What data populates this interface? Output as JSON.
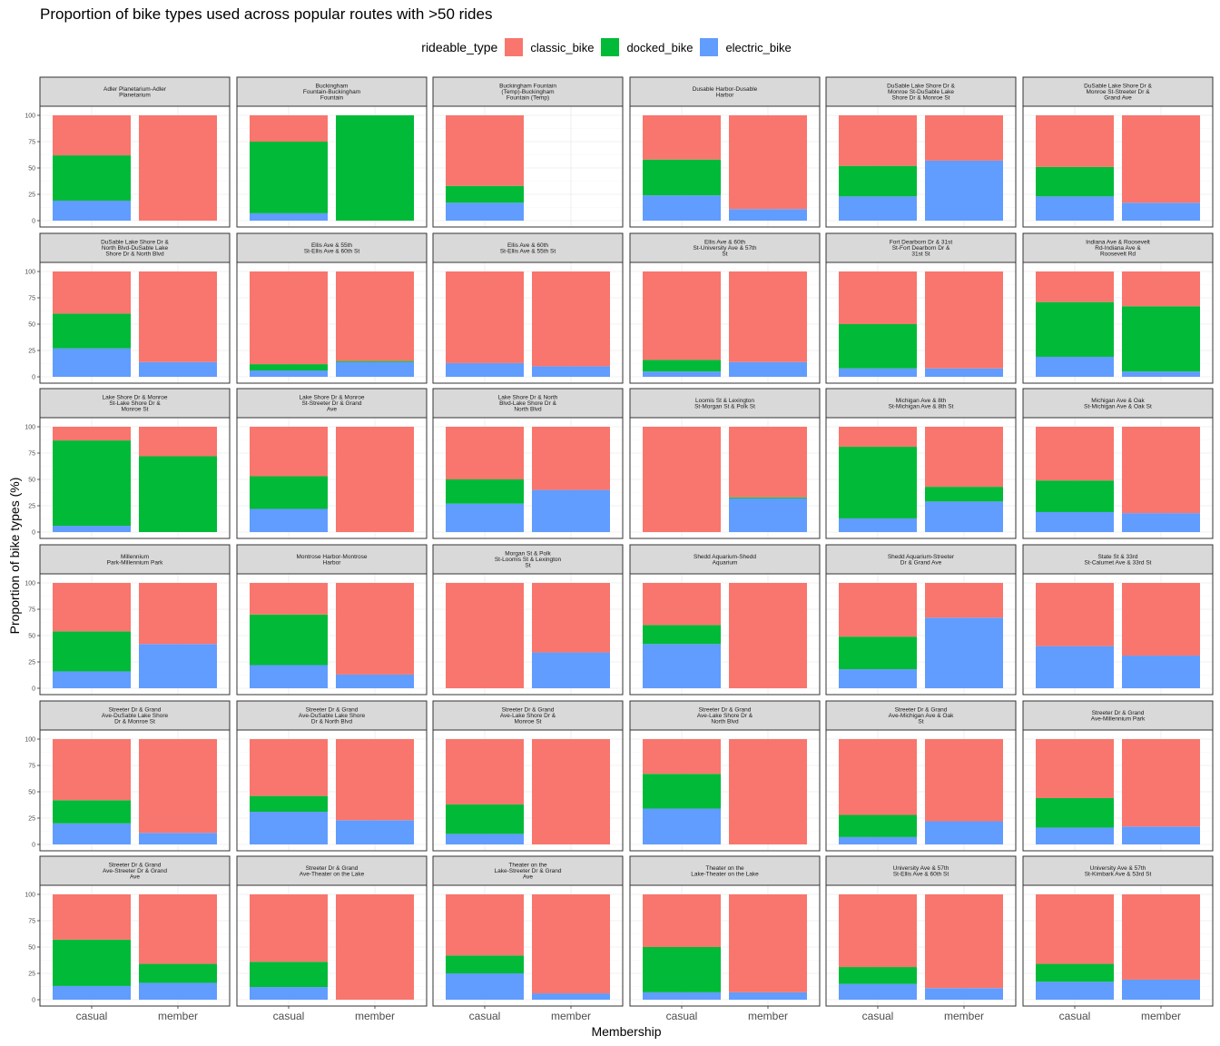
{
  "chart_data": {
    "type": "bar",
    "stacked": true,
    "title": "Proportion of bike types used across popular routes with >50 rides",
    "xlabel": "Membership",
    "ylabel": "Proportion of bike types (%)",
    "ylim": [
      0,
      100
    ],
    "yticks": [
      "0",
      "25",
      "50",
      "75",
      "100"
    ],
    "categories": [
      "casual",
      "member"
    ],
    "legend": {
      "title": "rideable_type",
      "position": "top",
      "items": [
        {
          "name": "classic_bike",
          "color": "#F8766D"
        },
        {
          "name": "docked_bike",
          "color": "#00BA38"
        },
        {
          "name": "electric_bike",
          "color": "#619CFF"
        }
      ]
    },
    "stack_order": [
      "electric_bike",
      "docked_bike",
      "classic_bike"
    ],
    "grid": true,
    "panels": [
      {
        "route": [
          "Adler Planetarium-Adler",
          "Planetarium"
        ],
        "casual": {
          "classic_bike": 38,
          "docked_bike": 43,
          "electric_bike": 19
        },
        "member": {
          "classic_bike": 100,
          "docked_bike": 0,
          "electric_bike": 0
        }
      },
      {
        "route": [
          "Buckingham",
          "Fountain-Buckingham",
          "Fountain"
        ],
        "casual": {
          "classic_bike": 25,
          "docked_bike": 68,
          "electric_bike": 7
        },
        "member": {
          "classic_bike": 0,
          "docked_bike": 100,
          "electric_bike": 0
        }
      },
      {
        "route": [
          "Buckingham Fountain",
          "(Temp)-Buckingham",
          "Fountain (Temp)"
        ],
        "casual": {
          "classic_bike": 67,
          "docked_bike": 16,
          "electric_bike": 17
        },
        "member": null
      },
      {
        "route": [
          "Dusable Harbor-Dusable",
          "Harbor"
        ],
        "casual": {
          "classic_bike": 42,
          "docked_bike": 34,
          "electric_bike": 24
        },
        "member": {
          "classic_bike": 89,
          "docked_bike": 0,
          "electric_bike": 11
        }
      },
      {
        "route": [
          "DuSable Lake Shore Dr &",
          "Monroe St-DuSable Lake",
          "Shore Dr & Monroe St"
        ],
        "casual": {
          "classic_bike": 48,
          "docked_bike": 29,
          "electric_bike": 23
        },
        "member": {
          "classic_bike": 43,
          "docked_bike": 0,
          "electric_bike": 57
        }
      },
      {
        "route": [
          "DuSable Lake Shore Dr &",
          "Monroe St-Streeter Dr &",
          "Grand Ave"
        ],
        "casual": {
          "classic_bike": 49,
          "docked_bike": 28,
          "electric_bike": 23
        },
        "member": {
          "classic_bike": 83,
          "docked_bike": 0,
          "electric_bike": 17
        }
      },
      {
        "route": [
          "DuSable Lake Shore Dr &",
          "North Blvd-DuSable Lake",
          "Shore Dr & North Blvd"
        ],
        "casual": {
          "classic_bike": 40,
          "docked_bike": 33,
          "electric_bike": 27
        },
        "member": {
          "classic_bike": 86,
          "docked_bike": 0,
          "electric_bike": 14
        }
      },
      {
        "route": [
          "Ellis Ave & 55th",
          "St-Ellis Ave & 60th St"
        ],
        "casual": {
          "classic_bike": 88,
          "docked_bike": 6,
          "electric_bike": 6
        },
        "member": {
          "classic_bike": 85,
          "docked_bike": 1,
          "electric_bike": 14
        }
      },
      {
        "route": [
          "Ellis Ave & 60th",
          "St-Ellis Ave & 55th St"
        ],
        "casual": {
          "classic_bike": 87,
          "docked_bike": 0,
          "electric_bike": 13
        },
        "member": {
          "classic_bike": 90,
          "docked_bike": 0,
          "electric_bike": 10
        }
      },
      {
        "route": [
          "Ellis Ave & 60th",
          "St-University Ave & 57th",
          "St"
        ],
        "casual": {
          "classic_bike": 84,
          "docked_bike": 11,
          "electric_bike": 5
        },
        "member": {
          "classic_bike": 86,
          "docked_bike": 0,
          "electric_bike": 14
        }
      },
      {
        "route": [
          "Fort Dearborn Dr & 31st",
          "St-Fort Dearborn Dr &",
          "31st St"
        ],
        "casual": {
          "classic_bike": 50,
          "docked_bike": 42,
          "electric_bike": 8
        },
        "member": {
          "classic_bike": 92,
          "docked_bike": 0,
          "electric_bike": 8
        }
      },
      {
        "route": [
          "Indiana Ave & Roosevelt",
          "Rd-Indiana Ave &",
          "Roosevelt Rd"
        ],
        "casual": {
          "classic_bike": 29,
          "docked_bike": 52,
          "electric_bike": 19
        },
        "member": {
          "classic_bike": 33,
          "docked_bike": 62,
          "electric_bike": 5
        }
      },
      {
        "route": [
          "Lake Shore Dr & Monroe",
          "St-Lake Shore Dr &",
          "Monroe St"
        ],
        "casual": {
          "classic_bike": 13,
          "docked_bike": 81,
          "electric_bike": 6
        },
        "member": {
          "classic_bike": 28,
          "docked_bike": 72,
          "electric_bike": 0
        }
      },
      {
        "route": [
          "Lake Shore Dr & Monroe",
          "St-Streeter Dr & Grand",
          "Ave"
        ],
        "casual": {
          "classic_bike": 47,
          "docked_bike": 31,
          "electric_bike": 22
        },
        "member": {
          "classic_bike": 100,
          "docked_bike": 0,
          "electric_bike": 0
        }
      },
      {
        "route": [
          "Lake Shore Dr & North",
          "Blvd-Lake Shore Dr &",
          "North Blvd"
        ],
        "casual": {
          "classic_bike": 50,
          "docked_bike": 23,
          "electric_bike": 27
        },
        "member": {
          "classic_bike": 60,
          "docked_bike": 0,
          "electric_bike": 40
        }
      },
      {
        "route": [
          "Loomis St & Lexington",
          "St-Morgan St & Polk St"
        ],
        "casual": {
          "classic_bike": 100,
          "docked_bike": 0,
          "electric_bike": 0
        },
        "member": {
          "classic_bike": 67,
          "docked_bike": 1,
          "electric_bike": 32
        }
      },
      {
        "route": [
          "Michigan Ave & 8th",
          "St-Michigan Ave & 8th St"
        ],
        "casual": {
          "classic_bike": 19,
          "docked_bike": 68,
          "electric_bike": 13
        },
        "member": {
          "classic_bike": 57,
          "docked_bike": 14,
          "electric_bike": 29
        }
      },
      {
        "route": [
          "Michigan Ave & Oak",
          "St-Michigan Ave & Oak St"
        ],
        "casual": {
          "classic_bike": 51,
          "docked_bike": 30,
          "electric_bike": 19
        },
        "member": {
          "classic_bike": 82,
          "docked_bike": 0,
          "electric_bike": 18
        }
      },
      {
        "route": [
          "Millennium",
          "Park-Millennium Park"
        ],
        "casual": {
          "classic_bike": 46,
          "docked_bike": 38,
          "electric_bike": 16
        },
        "member": {
          "classic_bike": 58,
          "docked_bike": 0,
          "electric_bike": 42
        }
      },
      {
        "route": [
          "Montrose Harbor-Montrose",
          "Harbor"
        ],
        "casual": {
          "classic_bike": 30,
          "docked_bike": 48,
          "electric_bike": 22
        },
        "member": {
          "classic_bike": 87,
          "docked_bike": 0,
          "electric_bike": 13
        }
      },
      {
        "route": [
          "Morgan St & Polk",
          "St-Loomis St & Lexington",
          "St"
        ],
        "casual": {
          "classic_bike": 100,
          "docked_bike": 0,
          "electric_bike": 0
        },
        "member": {
          "classic_bike": 66,
          "docked_bike": 0,
          "electric_bike": 34
        }
      },
      {
        "route": [
          "Shedd Aquarium-Shedd",
          "Aquarium"
        ],
        "casual": {
          "classic_bike": 40,
          "docked_bike": 18,
          "electric_bike": 42
        },
        "member": {
          "classic_bike": 100,
          "docked_bike": 0,
          "electric_bike": 0
        }
      },
      {
        "route": [
          "Shedd Aquarium-Streeter",
          "Dr & Grand Ave"
        ],
        "casual": {
          "classic_bike": 51,
          "docked_bike": 31,
          "electric_bike": 18
        },
        "member": {
          "classic_bike": 33,
          "docked_bike": 0,
          "electric_bike": 67
        }
      },
      {
        "route": [
          "State St & 33rd",
          "St-Calumet Ave & 33rd St"
        ],
        "casual": {
          "classic_bike": 60,
          "docked_bike": 0,
          "electric_bike": 40
        },
        "member": {
          "classic_bike": 69,
          "docked_bike": 0,
          "electric_bike": 31
        }
      },
      {
        "route": [
          "Streeter Dr & Grand",
          "Ave-DuSable Lake Shore",
          "Dr & Monroe St"
        ],
        "casual": {
          "classic_bike": 58,
          "docked_bike": 22,
          "electric_bike": 20
        },
        "member": {
          "classic_bike": 89,
          "docked_bike": 0,
          "electric_bike": 11
        }
      },
      {
        "route": [
          "Streeter Dr & Grand",
          "Ave-DuSable Lake Shore",
          "Dr & North Blvd"
        ],
        "casual": {
          "classic_bike": 54,
          "docked_bike": 15,
          "electric_bike": 31
        },
        "member": {
          "classic_bike": 77,
          "docked_bike": 0,
          "electric_bike": 23
        }
      },
      {
        "route": [
          "Streeter Dr & Grand",
          "Ave-Lake Shore Dr &",
          "Monroe St"
        ],
        "casual": {
          "classic_bike": 62,
          "docked_bike": 28,
          "electric_bike": 10
        },
        "member": {
          "classic_bike": 100,
          "docked_bike": 0,
          "electric_bike": 0
        }
      },
      {
        "route": [
          "Streeter Dr & Grand",
          "Ave-Lake Shore Dr &",
          "North Blvd"
        ],
        "casual": {
          "classic_bike": 33,
          "docked_bike": 33,
          "electric_bike": 34
        },
        "member": {
          "classic_bike": 100,
          "docked_bike": 0,
          "electric_bike": 0
        }
      },
      {
        "route": [
          "Streeter Dr & Grand",
          "Ave-Michigan Ave & Oak",
          "St"
        ],
        "casual": {
          "classic_bike": 72,
          "docked_bike": 21,
          "electric_bike": 7
        },
        "member": {
          "classic_bike": 78,
          "docked_bike": 0,
          "electric_bike": 22
        }
      },
      {
        "route": [
          "Streeter Dr & Grand",
          "Ave-Millennium Park"
        ],
        "casual": {
          "classic_bike": 56,
          "docked_bike": 28,
          "electric_bike": 16
        },
        "member": {
          "classic_bike": 83,
          "docked_bike": 0,
          "electric_bike": 17
        }
      },
      {
        "route": [
          "Streeter Dr & Grand",
          "Ave-Streeter Dr & Grand",
          "Ave"
        ],
        "casual": {
          "classic_bike": 43,
          "docked_bike": 44,
          "electric_bike": 13
        },
        "member": {
          "classic_bike": 66,
          "docked_bike": 18,
          "electric_bike": 16
        }
      },
      {
        "route": [
          "Streeter Dr & Grand",
          "Ave-Theater on the Lake"
        ],
        "casual": {
          "classic_bike": 64,
          "docked_bike": 24,
          "electric_bike": 12
        },
        "member": {
          "classic_bike": 100,
          "docked_bike": 0,
          "electric_bike": 0
        }
      },
      {
        "route": [
          "Theater on the",
          "Lake-Streeter Dr & Grand",
          "Ave"
        ],
        "casual": {
          "classic_bike": 58,
          "docked_bike": 17,
          "electric_bike": 25
        },
        "member": {
          "classic_bike": 94,
          "docked_bike": 0,
          "electric_bike": 6
        }
      },
      {
        "route": [
          "Theater on the",
          "Lake-Theater on the Lake"
        ],
        "casual": {
          "classic_bike": 50,
          "docked_bike": 43,
          "electric_bike": 7
        },
        "member": {
          "classic_bike": 93,
          "docked_bike": 0,
          "electric_bike": 7
        }
      },
      {
        "route": [
          "University Ave & 57th",
          "St-Ellis Ave & 60th St"
        ],
        "casual": {
          "classic_bike": 69,
          "docked_bike": 16,
          "electric_bike": 15
        },
        "member": {
          "classic_bike": 89,
          "docked_bike": 0,
          "electric_bike": 11
        }
      },
      {
        "route": [
          "University Ave & 57th",
          "St-Kimbark Ave & 53rd St"
        ],
        "casual": {
          "classic_bike": 66,
          "docked_bike": 17,
          "electric_bike": 17
        },
        "member": {
          "classic_bike": 81,
          "docked_bike": 0,
          "electric_bike": 19
        }
      }
    ]
  }
}
